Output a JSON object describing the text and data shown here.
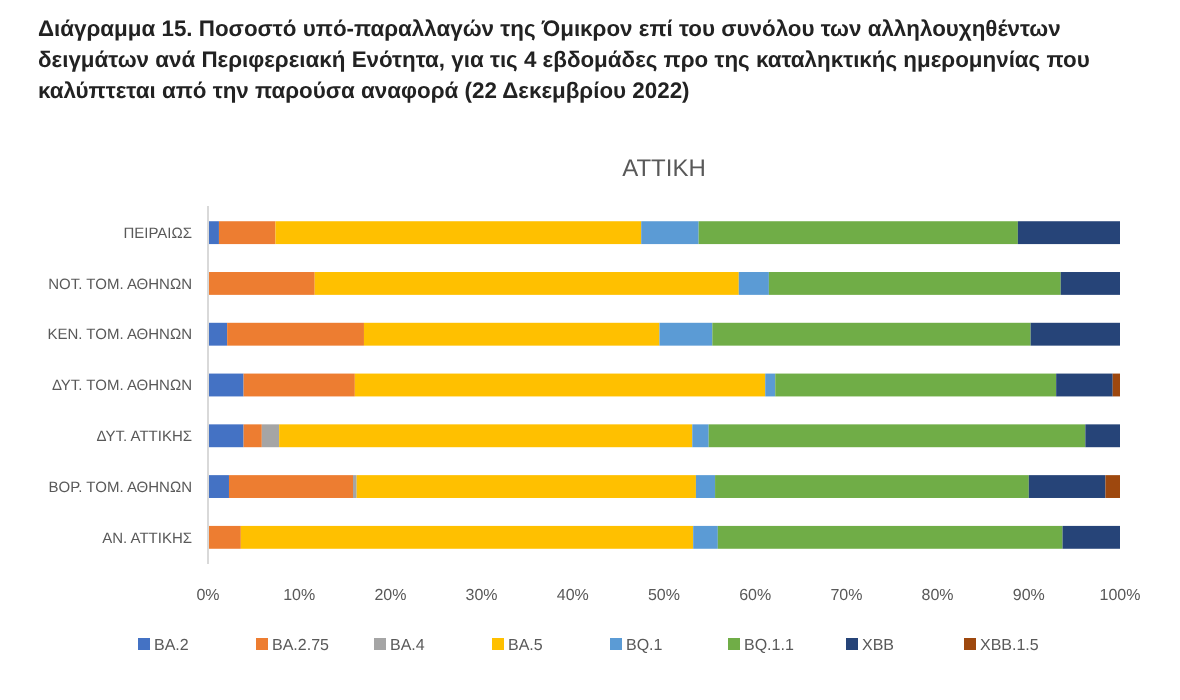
{
  "chart_data": {
    "type": "bar",
    "orientation": "horizontal",
    "stacked": true,
    "title": "Διάγραμμα 15. Ποσοστό υπό-παραλλαγών της Όμικρον επί του συνόλου των αλληλουχηθέντων δειγμάτων ανά Περιφερειακή Ενότητα, για τις 4 εβδομάδες προ της καταληκτικής ημερομηνίας που καλύπτεται από την παρούσα αναφορά (22 Δεκεμβρίου 2022)",
    "subtitle": "ΑΤΤΙΚΗ",
    "categories": [
      "ΠΕΙΡΑΙΩΣ",
      "ΝΟΤ. ΤΟΜ. ΑΘΗΝΩΝ",
      "ΚΕΝ. ΤΟΜ. ΑΘΗΝΩΝ",
      "ΔΥΤ. ΤΟΜ. ΑΘΗΝΩΝ",
      "ΔΥΤ. ΑΤΤΙΚΗΣ",
      "ΒΟΡ. ΤΟΜ. ΑΘΗΝΩΝ",
      "ΑΝ. ΑΤΤΙΚΗΣ"
    ],
    "series": [
      {
        "name": "BA.2",
        "color": "#4472c4",
        "values": [
          1.2,
          null,
          2.1,
          3.9,
          3.9,
          2.3,
          null
        ]
      },
      {
        "name": "BA.2.75",
        "color": "#ed7d31",
        "values": [
          6.2,
          11.7,
          15.0,
          12.2,
          2.0,
          13.6,
          3.6
        ]
      },
      {
        "name": "BA.4",
        "color": "#a5a5a5",
        "values": [
          null,
          null,
          null,
          null,
          1.9,
          0.4,
          null
        ]
      },
      {
        "name": "BA.5",
        "color": "#ffc000",
        "values": [
          40.1,
          46.5,
          32.4,
          45.0,
          45.3,
          37.2,
          49.6
        ]
      },
      {
        "name": "BQ.1",
        "color": "#5b9bd5",
        "values": [
          6.3,
          3.3,
          5.8,
          1.1,
          1.8,
          2.1,
          2.7
        ]
      },
      {
        "name": "BQ.1.1",
        "color": "#70ad47",
        "values": [
          35.0,
          32.0,
          34.9,
          30.8,
          41.3,
          34.4,
          37.8
        ]
      },
      {
        "name": "XBB",
        "color": "#264478",
        "values": [
          11.2,
          6.5,
          9.8,
          6.2,
          3.8,
          8.4,
          6.3
        ]
      },
      {
        "name": "XBB.1.5",
        "color": "#9e480e",
        "values": [
          null,
          null,
          null,
          0.8,
          null,
          1.6,
          null
        ]
      }
    ],
    "xlim": [
      0,
      100
    ],
    "xticks": [
      {
        "value": 0,
        "label": "0%"
      },
      {
        "value": 10,
        "label": "10%"
      },
      {
        "value": 20,
        "label": "20%"
      },
      {
        "value": 30,
        "label": "30%"
      },
      {
        "value": 40,
        "label": "40%"
      },
      {
        "value": 50,
        "label": "50%"
      },
      {
        "value": 60,
        "label": "60%"
      },
      {
        "value": 70,
        "label": "70%"
      },
      {
        "value": 80,
        "label": "80%"
      },
      {
        "value": 90,
        "label": "90%"
      },
      {
        "value": 100,
        "label": "100%"
      }
    ],
    "legend": "bottom",
    "grid": false
  }
}
